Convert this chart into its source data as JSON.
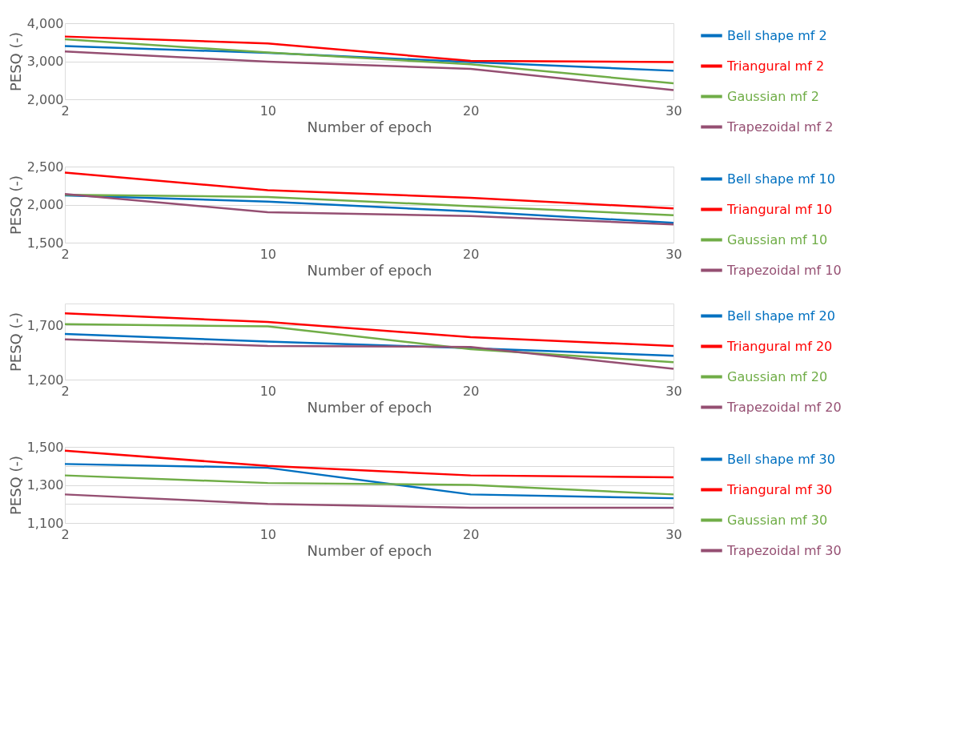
{
  "chart_data": [
    {
      "type": "line",
      "xlabel": "Number of epoch",
      "ylabel": "PESQ (-)",
      "categories": [
        "2",
        "10",
        "20",
        "30"
      ],
      "ylim": [
        2000,
        4000
      ],
      "yticks": [
        {
          "value": 2000,
          "label": "2,000"
        },
        {
          "value": 3000,
          "label": "3,000"
        },
        {
          "value": 4000,
          "label": "4,000"
        }
      ],
      "grid": "y",
      "legend": "right",
      "marker": "none",
      "line_style": "solid",
      "series": [
        {
          "name": "Bell shape mf 2",
          "color": "#0070c0",
          "values": [
            3400,
            3220,
            2980,
            2750
          ]
        },
        {
          "name": "Triangural mf 2",
          "color": "#ff0000",
          "values": [
            3650,
            3470,
            3010,
            2980
          ]
        },
        {
          "name": "Gaussian mf 2",
          "color": "#70ad47",
          "values": [
            3580,
            3230,
            2920,
            2420
          ]
        },
        {
          "name": "Trapezoidal mf 2",
          "color": "#954f72",
          "values": [
            3260,
            2990,
            2800,
            2240
          ]
        }
      ]
    },
    {
      "type": "line",
      "xlabel": "Number of epoch",
      "ylabel": "PESQ (-)",
      "categories": [
        "2",
        "10",
        "20",
        "30"
      ],
      "ylim": [
        1500,
        2500
      ],
      "yticks": [
        {
          "value": 1500,
          "label": "1,500"
        },
        {
          "value": 2000,
          "label": "2,000"
        },
        {
          "value": 2500,
          "label": "2,500"
        }
      ],
      "grid": "y",
      "legend": "right",
      "marker": "none",
      "line_style": "solid",
      "series": [
        {
          "name": "Bell shape mf 10",
          "color": "#0070c0",
          "values": [
            2120,
            2040,
            1910,
            1760
          ]
        },
        {
          "name": "Triangural mf 10",
          "color": "#ff0000",
          "values": [
            2420,
            2190,
            2090,
            1950
          ]
        },
        {
          "name": "Gaussian mf 10",
          "color": "#70ad47",
          "values": [
            2130,
            2100,
            1980,
            1860
          ]
        },
        {
          "name": "Trapezoidal mf 10",
          "color": "#954f72",
          "values": [
            2140,
            1900,
            1850,
            1740
          ]
        }
      ]
    },
    {
      "type": "line",
      "xlabel": "Number of epoch",
      "ylabel": "PESQ (-)",
      "categories": [
        "2",
        "10",
        "20",
        "30"
      ],
      "ylim": [
        1200,
        1900
      ],
      "yticks": [
        {
          "value": 1200,
          "label": "1,200"
        },
        {
          "value": 1700,
          "label": "1,700"
        }
      ],
      "grid": "y",
      "legend": "right",
      "marker": "none",
      "line_style": "solid",
      "series": [
        {
          "name": "Bell shape mf 20",
          "color": "#0070c0",
          "values": [
            1620,
            1550,
            1490,
            1420
          ]
        },
        {
          "name": "Triangural mf 20",
          "color": "#ff0000",
          "values": [
            1810,
            1730,
            1590,
            1510
          ]
        },
        {
          "name": "Gaussian mf 20",
          "color": "#70ad47",
          "values": [
            1710,
            1690,
            1480,
            1360
          ]
        },
        {
          "name": "Trapezoidal mf 20",
          "color": "#954f72",
          "values": [
            1570,
            1510,
            1500,
            1300
          ]
        }
      ]
    },
    {
      "type": "line",
      "xlabel": "Number of epoch",
      "ylabel": "PESQ (-)",
      "categories": [
        "2",
        "10",
        "20",
        "30"
      ],
      "ylim": [
        1100,
        1500
      ],
      "yticks": [
        {
          "value": 1100,
          "label": "1,100"
        },
        {
          "value": 1200,
          "label": null
        },
        {
          "value": 1300,
          "label": "1,300"
        },
        {
          "value": 1400,
          "label": null
        },
        {
          "value": 1500,
          "label": "1,500"
        }
      ],
      "grid": "y",
      "legend": "right",
      "marker": "none",
      "line_style": "solid",
      "series": [
        {
          "name": "Bell shape mf 30",
          "color": "#0070c0",
          "values": [
            1410,
            1390,
            1250,
            1230
          ]
        },
        {
          "name": "Triangural mf 30",
          "color": "#ff0000",
          "values": [
            1480,
            1400,
            1350,
            1340
          ]
        },
        {
          "name": "Gaussian mf 30",
          "color": "#70ad47",
          "values": [
            1350,
            1310,
            1300,
            1250
          ]
        },
        {
          "name": "Trapezoidal mf 30",
          "color": "#954f72",
          "values": [
            1250,
            1200,
            1180,
            1180
          ]
        }
      ]
    }
  ]
}
